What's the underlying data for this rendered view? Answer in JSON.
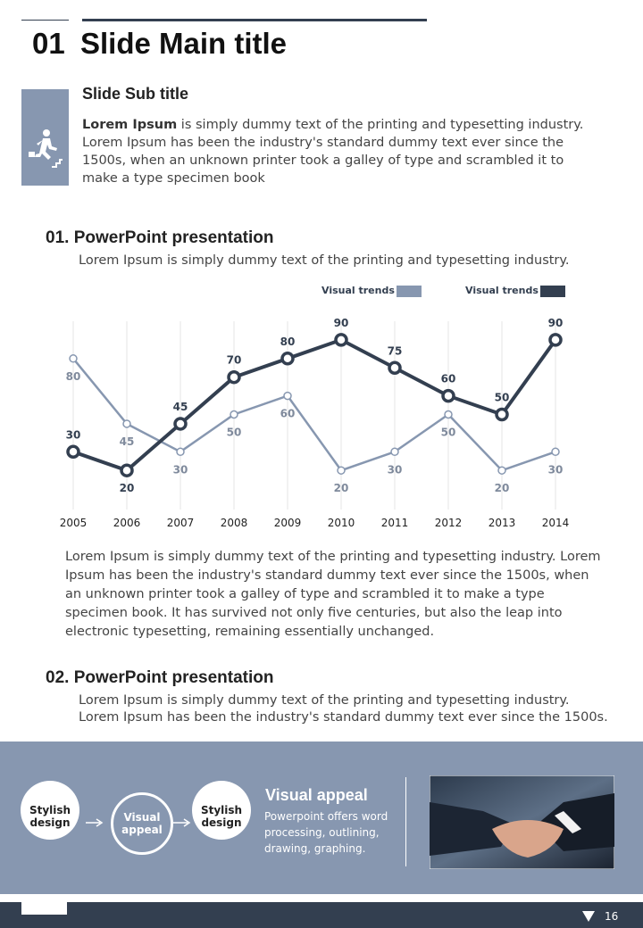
{
  "header": {
    "number": "01",
    "title": "Slide Main title"
  },
  "intro": {
    "subtitle": "Slide Sub title",
    "lead": "Lorem Ipsum",
    "text": " is simply dummy text of the printing and typesetting industry. Lorem Ipsum has been the industry's standard dummy text ever since the 1500s, when an unknown printer took a galley of type and scrambled it to make a type specimen book"
  },
  "section1": {
    "heading": "01. PowerPoint presentation",
    "text": "Lorem Ipsum is simply dummy text of the printing and typesetting industry.",
    "paragraph": "Lorem Ipsum is simply dummy text of the printing and typesetting industry. Lorem Ipsum has been the industry's standard dummy text ever since the 1500s, when an unknown printer took a galley of type and scrambled it to make a type specimen book. It has survived not only five centuries, but also the leap into electronic typesetting, remaining essentially unchanged."
  },
  "chart_data": {
    "type": "line",
    "categories": [
      "2005",
      "2006",
      "2007",
      "2008",
      "2009",
      "2010",
      "2011",
      "2012",
      "2013",
      "2014"
    ],
    "series": [
      {
        "name": "Visual trends",
        "color": "#8797b0",
        "values": [
          80,
          45,
          30,
          50,
          60,
          20,
          30,
          50,
          20,
          30
        ]
      },
      {
        "name": "Visual trends",
        "color": "#333f50",
        "values": [
          30,
          20,
          45,
          70,
          80,
          90,
          75,
          60,
          50,
          90
        ]
      }
    ],
    "ylim": [
      0,
      100
    ],
    "grid": true,
    "legend": "top-right"
  },
  "section2": {
    "heading": "02. PowerPoint presentation",
    "lines": [
      "Lorem Ipsum is simply dummy text of the printing and typesetting industry.",
      "Lorem Ipsum has been the industry's standard dummy text ever since the 1500s."
    ]
  },
  "banner": {
    "steps": [
      "Stylish design",
      "Visual appeal",
      "Stylish design"
    ],
    "title": "Visual appeal",
    "text": "Powerpoint offers word processing, outlining, drawing, graphing."
  },
  "footer": {
    "page": "16"
  }
}
